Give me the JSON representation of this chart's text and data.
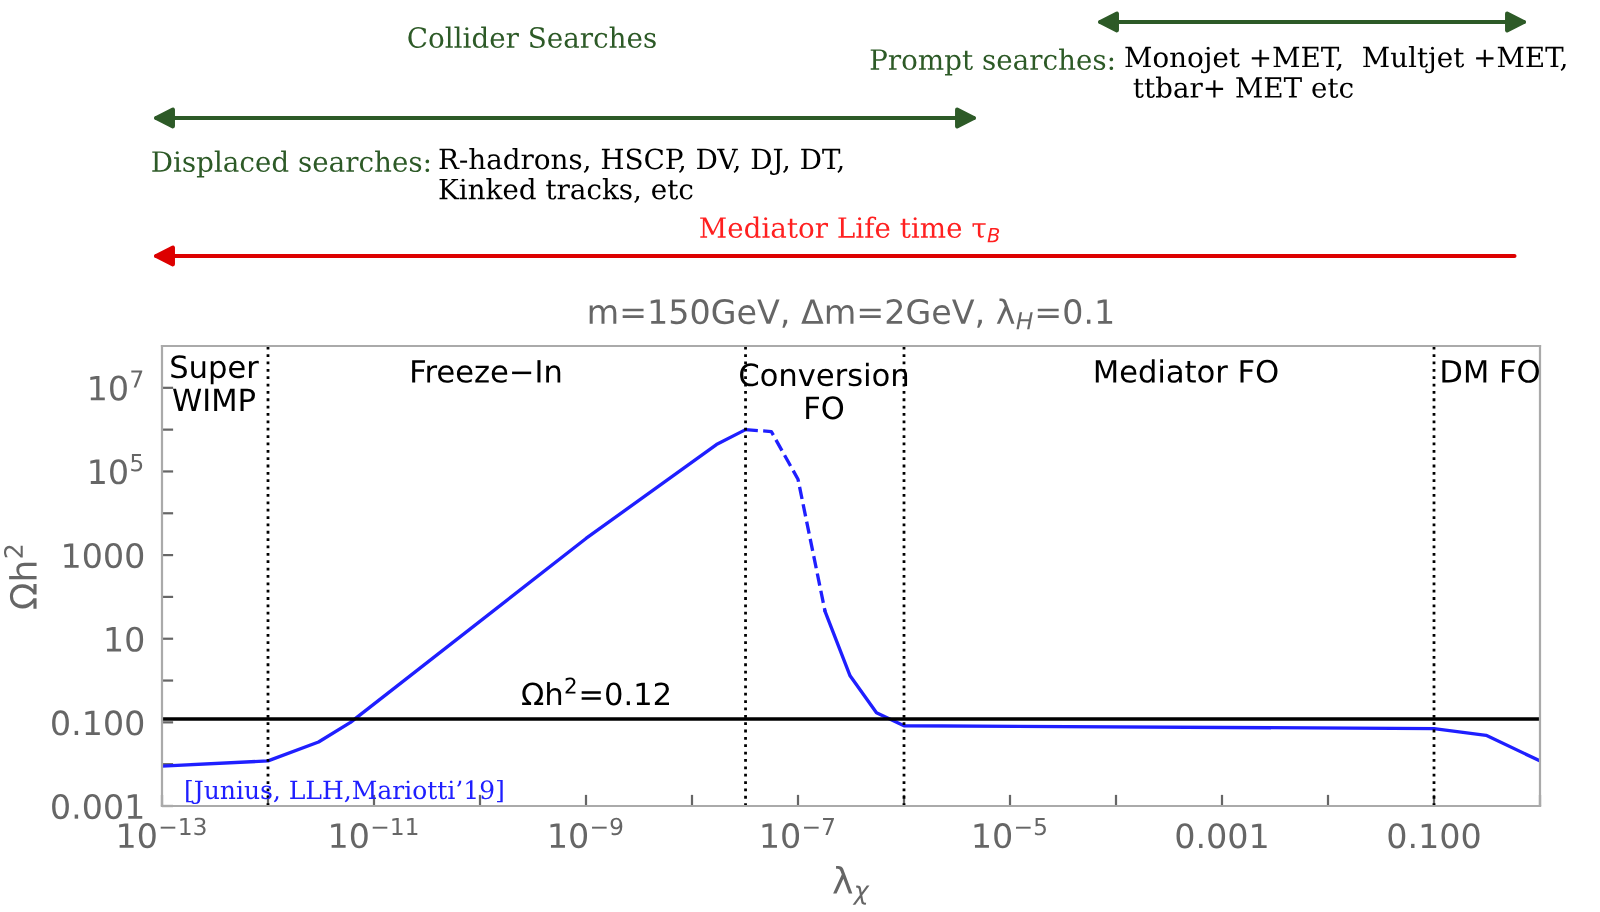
{
  "chart_data": {
    "type": "line",
    "title": "m=150GeV, Δm=2GeV, λ$_{H}$=0.1",
    "xlabel": "λ$_{χ}$",
    "ylabel": "Ωh$^{2}$",
    "log": "xy",
    "xlim": [
      1e-13,
      1
    ],
    "ylim": [
      0.001,
      100000000
    ],
    "xticks": [
      {
        "value": 1e-13,
        "label": "10$^{−13}$"
      },
      {
        "value": 1e-12,
        "label": null
      },
      {
        "value": 1e-11,
        "label": "10$^{−11}$"
      },
      {
        "value": 1e-10,
        "label": null
      },
      {
        "value": 1e-09,
        "label": "10$^{−9}$"
      },
      {
        "value": 1e-08,
        "label": null
      },
      {
        "value": 1e-07,
        "label": "10$^{−7}$"
      },
      {
        "value": 1e-06,
        "label": null
      },
      {
        "value": 1e-05,
        "label": "10$^{−5}$"
      },
      {
        "value": 0.0001,
        "label": null
      },
      0.001,
      {
        "value": 0.01,
        "label": null
      },
      {
        "value": 0.1,
        "label": "0.100"
      },
      {
        "value": 1,
        "label": null
      }
    ],
    "yticks": [
      0.001,
      {
        "value": 0.01,
        "label": null
      },
      {
        "value": 0.1,
        "label": "0.100"
      },
      {
        "value": 1,
        "label": null
      },
      10,
      {
        "value": 100,
        "label": null
      },
      1000,
      {
        "value": 10000,
        "label": null
      },
      {
        "value": 100000,
        "label": "10$^{5}$"
      },
      {
        "value": 1000000,
        "label": null
      },
      {
        "value": 10000000,
        "label": "10$^{7}$"
      }
    ],
    "grid": false,
    "legend": false,
    "marker": "none",
    "series": [
      {
        "color": "#1f1fff",
        "line_style": "solid",
        "x": [
          1e-13,
          1e-12,
          3e-12,
          6e-12,
          1e-09,
          1.7e-08,
          3.2e-08
        ],
        "values": [
          0.009,
          0.012,
          0.034,
          0.1,
          2500,
          440000,
          1000000
        ]
      },
      {
        "color": "#1f1fff",
        "line_style": "dashed",
        "x": [
          3.2e-08,
          5.6e-08,
          1e-07,
          1.8e-07
        ],
        "values": [
          1000000,
          900000,
          65000,
          45
        ]
      },
      {
        "color": "#1f1fff",
        "line_style": "solid",
        "x": [
          1.8e-07,
          3.1e-07,
          5.5e-07,
          1e-06,
          0.1,
          0.31,
          1
        ],
        "values": [
          45,
          1.3,
          0.17,
          0.083,
          0.071,
          0.049,
          0.012
        ]
      }
    ],
    "ref_lines": [
      {
        "axis": "y",
        "value": 0.12,
        "label": "Ωh$^{2}$=0.12",
        "color": "#000000",
        "line_style": "solid"
      },
      {
        "axis": "x",
        "value": 1e-12,
        "label": null,
        "color": "#000000",
        "line_style": "dotted"
      },
      {
        "axis": "x",
        "value": 3.2e-08,
        "label": null,
        "color": "#000000",
        "line_style": "dotted"
      },
      {
        "axis": "x",
        "value": 1e-06,
        "label": null,
        "color": "#000000",
        "line_style": "dotted"
      },
      {
        "axis": "x",
        "value": 0.1,
        "label": null,
        "color": "#000000",
        "line_style": "dotted"
      }
    ],
    "annotations": [
      "Collider Searches",
      "Prompt searches:",
      "Monojet +MET,  Multjet +MET,\n ttbar+ MET etc",
      "Displaced searches:",
      "R-hadrons, HSCP, DV, DJ, DT,\nKinked tracks, etc",
      "Mediator Life time τ$_{B}$",
      "[Junius, LLH,Mariotti’19]",
      "Super\nWIMP",
      "Freeze−In",
      "Conversion\nFO",
      "Mediator FO",
      "DM FO"
    ]
  }
}
